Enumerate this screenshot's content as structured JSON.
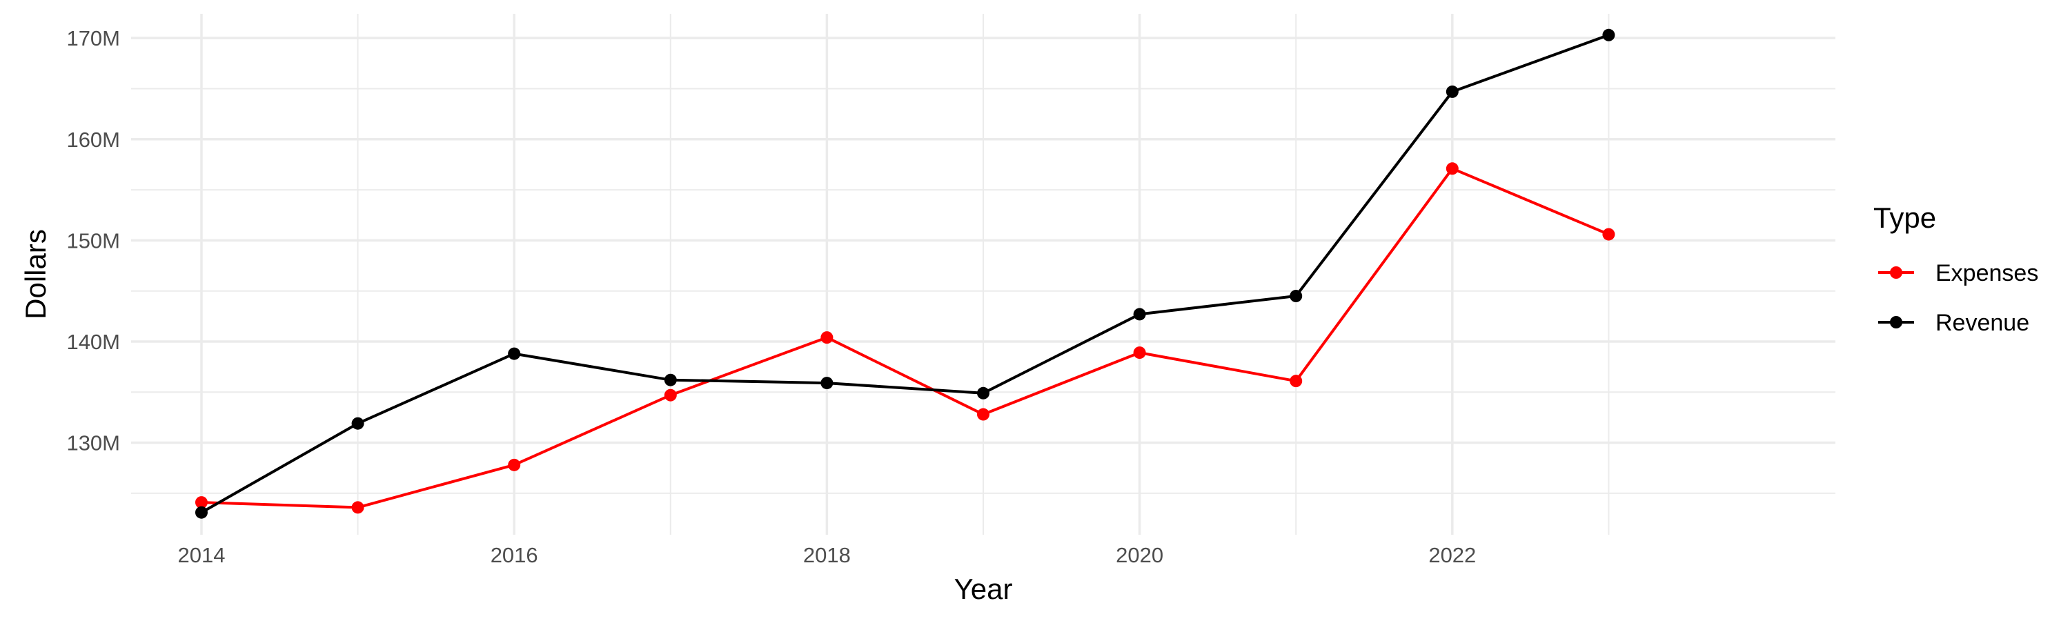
{
  "chart_data": {
    "type": "line",
    "xlabel": "Year",
    "ylabel": "Dollars",
    "x": [
      2014,
      2015,
      2016,
      2017,
      2018,
      2019,
      2020,
      2021,
      2022,
      2023
    ],
    "x_ticks": [
      2014,
      2016,
      2018,
      2020,
      2022
    ],
    "x_tick_labels": [
      "2014",
      "2016",
      "2018",
      "2020",
      "2022"
    ],
    "xlim": [
      2013.55,
      2024.45
    ],
    "y_ticks": [
      130,
      140,
      150,
      160,
      170
    ],
    "y_tick_labels": [
      "130M",
      "140M",
      "150M",
      "160M",
      "170M"
    ],
    "ylim": [
      120.9,
      172.4
    ],
    "y_unit": "M",
    "grid": true,
    "legend": {
      "title": "Type",
      "position": "right"
    },
    "series": [
      {
        "name": "Expenses",
        "color": "#ff0000",
        "values": [
          124.1,
          123.6,
          127.8,
          134.7,
          140.4,
          132.8,
          138.9,
          136.1,
          157.1,
          150.6
        ]
      },
      {
        "name": "Revenue",
        "color": "#000000",
        "values": [
          123.1,
          131.9,
          138.8,
          136.2,
          135.9,
          134.9,
          142.7,
          144.5,
          164.7,
          170.3
        ]
      }
    ]
  }
}
